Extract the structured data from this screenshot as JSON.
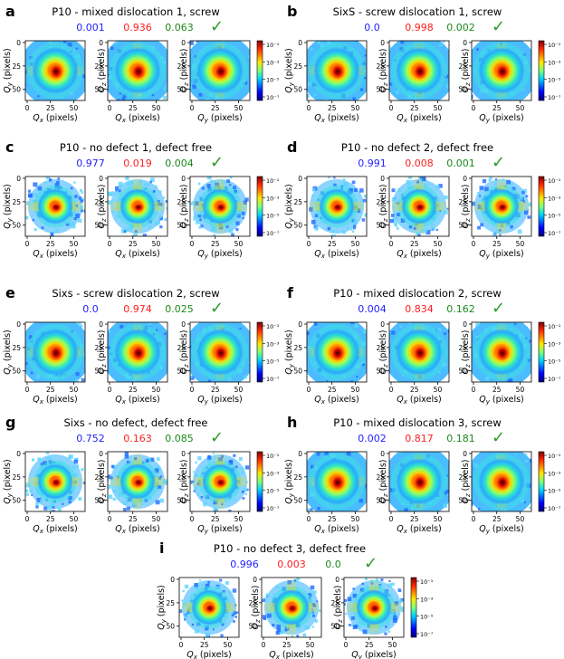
{
  "figure": {
    "palette": {
      "blue": "#1f1fff",
      "red": "#ff1f1f",
      "green": "#1a8a1a",
      "check": "#2a9d2a"
    },
    "colorbar_ticks": [
      "10⁻¹",
      "10⁻³",
      "10⁻⁵",
      "10⁻⁷"
    ],
    "check_symbol": "✓",
    "axis": {
      "qx_label": "Qx (pixels)",
      "qy_label": "Qy (pixels)",
      "qz_label": "Qz (pixels)",
      "qy_short": "Qy",
      "qz_short": "Qz",
      "y_ticks": [
        "0",
        "25",
        "50"
      ],
      "x_ticks": [
        "0",
        "25",
        "50"
      ]
    },
    "panels": [
      {
        "letter": "a",
        "title": "P10 - mixed dislocation 1, screw",
        "scores": [
          "0.001",
          "0.936",
          "0.063"
        ],
        "style": "screw"
      },
      {
        "letter": "b",
        "title": "SixS - screw dislocation 1, screw",
        "scores": [
          "0.0",
          "0.998",
          "0.002"
        ],
        "style": "screw"
      },
      {
        "letter": "c",
        "title": "P10 - no defect 1, defect free",
        "scores": [
          "0.977",
          "0.019",
          "0.004"
        ],
        "style": "free"
      },
      {
        "letter": "d",
        "title": "P10 - no defect 2, defect free",
        "scores": [
          "0.991",
          "0.008",
          "0.001"
        ],
        "style": "free"
      },
      {
        "letter": "e",
        "title": "Sixs - screw dislocation 2, screw",
        "scores": [
          "0.0",
          "0.974",
          "0.025"
        ],
        "style": "screw"
      },
      {
        "letter": "f",
        "title": "P10 - mixed dislocation 2, screw",
        "scores": [
          "0.004",
          "0.834",
          "0.162"
        ],
        "style": "screw"
      },
      {
        "letter": "g",
        "title": "Sixs - no defect, defect free",
        "scores": [
          "0.752",
          "0.163",
          "0.085"
        ],
        "style": "free"
      },
      {
        "letter": "h",
        "title": "P10 - mixed dislocation 3, screw",
        "scores": [
          "0.002",
          "0.817",
          "0.181"
        ],
        "style": "screw"
      },
      {
        "letter": "i",
        "title": "P10 - no defect 3, defect free",
        "scores": [
          "0.996",
          "0.003",
          "0.0"
        ],
        "style": "free"
      }
    ]
  }
}
